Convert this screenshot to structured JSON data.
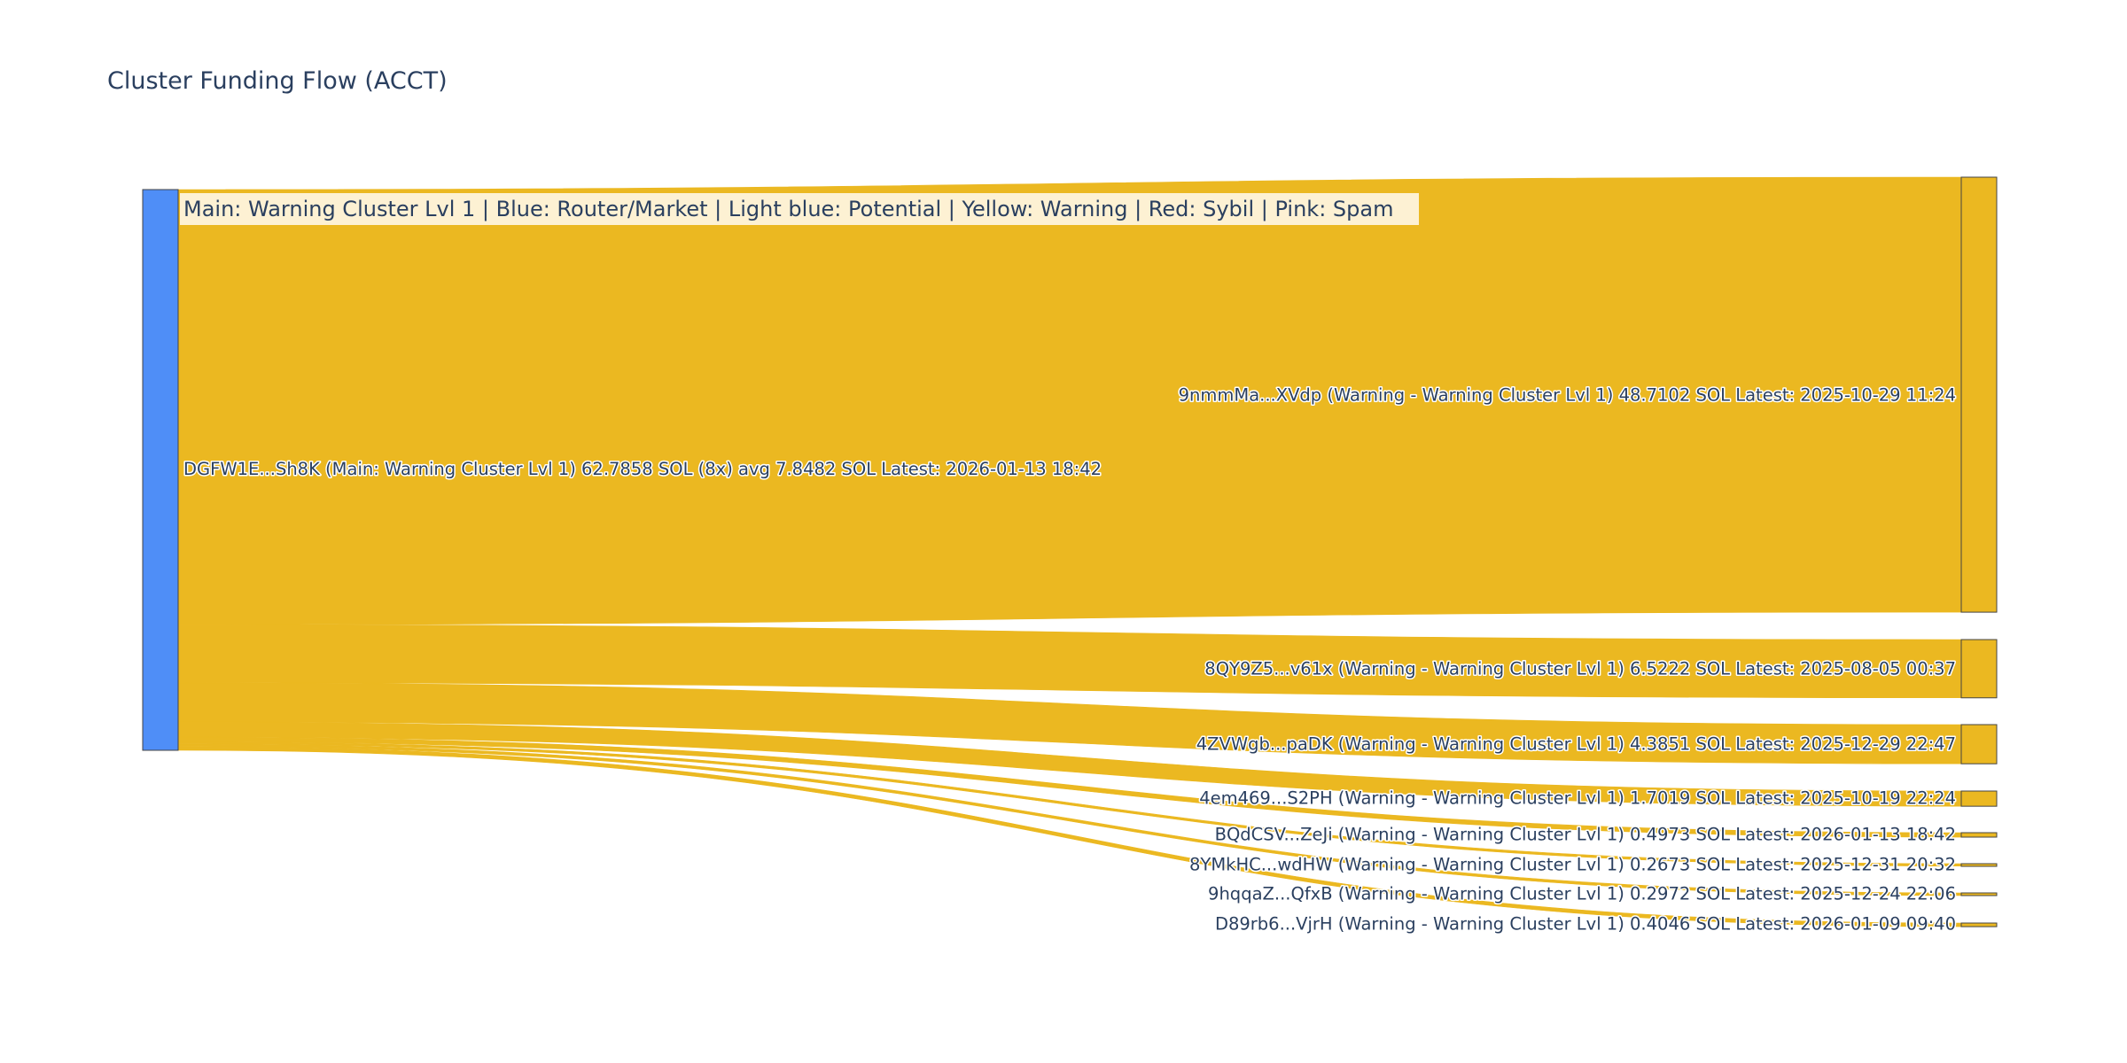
{
  "chart_data": {
    "type": "sankey",
    "title": "Cluster Funding Flow (ACCT)",
    "annotation": "Main: Warning Cluster Lvl 1  |  Blue: Router/Market | Light blue: Potential | Yellow: Warning | Red: Sybil | Pink: Spam",
    "colors": {
      "source_node": "#4f8ef7",
      "target_node": "#ebb821",
      "link": "#ebb821",
      "annotation_bg": "#fdf1d3",
      "text": "#2a3f5f"
    },
    "source": {
      "label": "DGFW1E...Sh8K (Main: Warning Cluster Lvl 1) 62.7858 SOL (8x) avg 7.8482 SOL Latest: 2026-01-13 18:42",
      "value": 62.7858
    },
    "targets": [
      {
        "label": "9nmmMa...XVdp (Warning - Warning Cluster Lvl 1) 48.7102 SOL Latest: 2025-10-29 11:24",
        "value": 48.7102
      },
      {
        "label": "8QY9Z5...v61x (Warning - Warning Cluster Lvl 1) 6.5222 SOL Latest: 2025-08-05 00:37",
        "value": 6.5222
      },
      {
        "label": "4ZVWgb...paDK (Warning - Warning Cluster Lvl 1) 4.3851 SOL Latest: 2025-12-29 22:47",
        "value": 4.3851
      },
      {
        "label": "4em469...S2PH (Warning - Warning Cluster Lvl 1) 1.7019 SOL Latest: 2025-10-19 22:24",
        "value": 1.7019
      },
      {
        "label": "BQdCSV...ZeJi (Warning - Warning Cluster Lvl 1) 0.4973 SOL Latest: 2026-01-13 18:42",
        "value": 0.4973
      },
      {
        "label": "8YMkHC...wdHW (Warning - Warning Cluster Lvl 1) 0.2673 SOL Latest: 2025-12-31 20:32",
        "value": 0.2673
      },
      {
        "label": "9hqqaZ...QfxB (Warning - Warning Cluster Lvl 1) 0.2972 SOL Latest: 2025-12-24 22:06",
        "value": 0.2972
      },
      {
        "label": "D89rb6...VjrH (Warning - Warning Cluster Lvl 1) 0.4046 SOL Latest: 2026-01-09 09:40",
        "value": 0.4046
      }
    ]
  }
}
